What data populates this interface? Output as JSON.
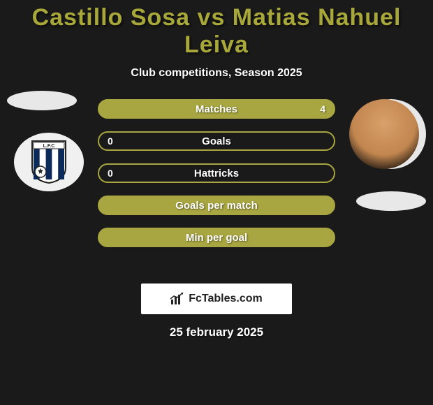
{
  "header": {
    "title": "Castillo Sosa vs Matias Nahuel Leiva",
    "title_color": "#a8a83a",
    "subtitle": "Club competitions, Season 2025"
  },
  "bars": [
    {
      "label": "Matches",
      "left": "",
      "right": "4",
      "fill": "#a8a640",
      "border": "#a8a640"
    },
    {
      "label": "Goals",
      "left": "0",
      "right": "",
      "fill": "transparent",
      "border": "#a8a640"
    },
    {
      "label": "Hattricks",
      "left": "0",
      "right": "",
      "fill": "transparent",
      "border": "#a8a640"
    },
    {
      "label": "Goals per match",
      "left": "",
      "right": "",
      "fill": "#a8a640",
      "border": "#a8a640"
    },
    {
      "label": "Min per goal",
      "left": "",
      "right": "",
      "fill": "#a8a640",
      "border": "#a8a640"
    }
  ],
  "brand": {
    "text": "FcTables.com"
  },
  "date": "25 february 2025",
  "badge": {
    "stripes": [
      "#0b2a5a",
      "#ffffff",
      "#0b2a5a",
      "#ffffff",
      "#0b2a5a"
    ],
    "banner_text": "L.F.C"
  }
}
